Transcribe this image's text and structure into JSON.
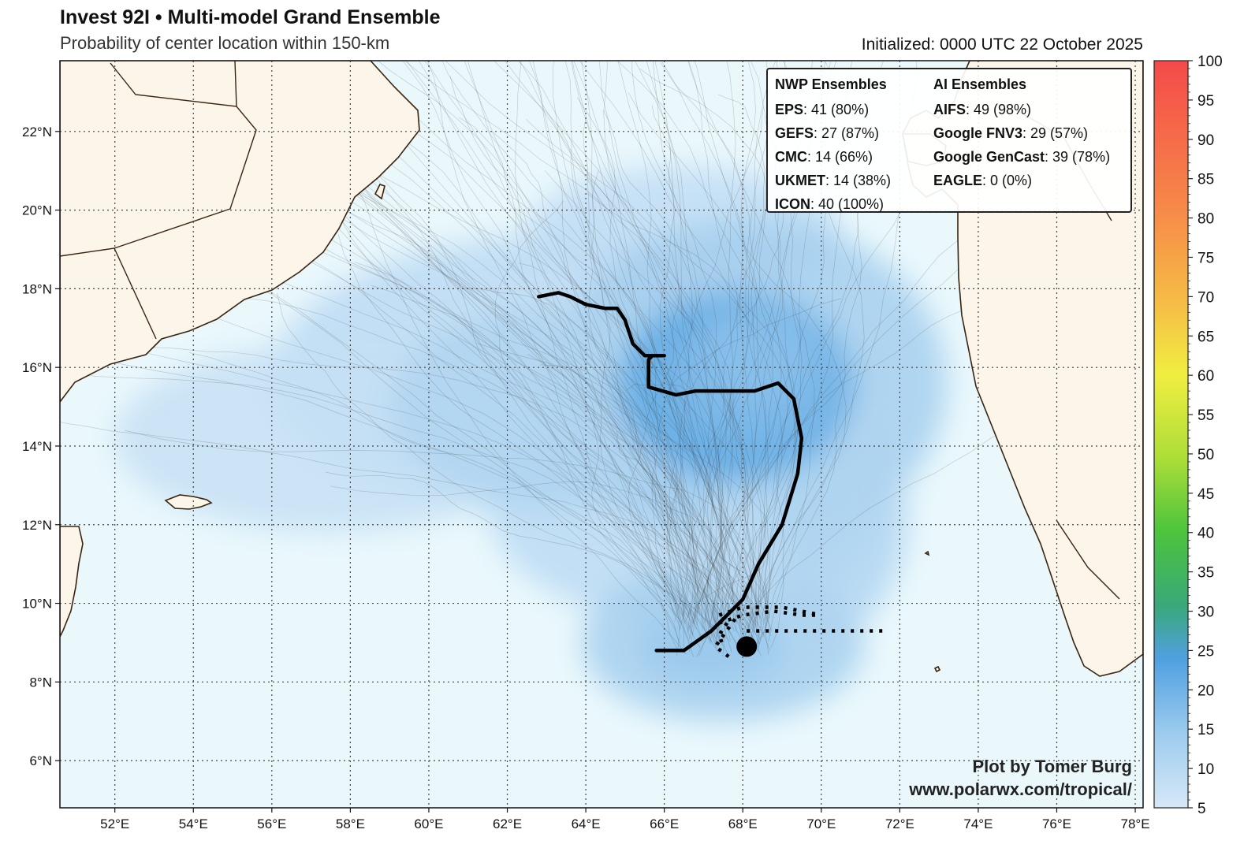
{
  "header": {
    "title": "Invest 92I • Multi-model Grand Ensemble",
    "subtitle": "Probability of center location within 150-km",
    "initialized": "Initialized: 0000 UTC 22 October 2025"
  },
  "legend": {
    "nwp_header": "NWP Ensembles",
    "ai_header": "AI Ensembles",
    "nwp": [
      {
        "name": "EPS",
        "value": ": 41 (80%)"
      },
      {
        "name": "GEFS",
        "value": ": 27 (87%)"
      },
      {
        "name": "CMC",
        "value": ": 14 (66%)"
      },
      {
        "name": "UKMET",
        "value": ": 14 (38%)"
      },
      {
        "name": "ICON",
        "value": ": 40 (100%)"
      }
    ],
    "ai": [
      {
        "name": "AIFS",
        "value": ": 49 (98%)"
      },
      {
        "name": "Google FNV3",
        "value": ": 29 (57%)"
      },
      {
        "name": "Google GenCast",
        "value": ": 39 (78%)"
      },
      {
        "name": "EAGLE",
        "value": ": 0 (0%)"
      }
    ]
  },
  "credit": {
    "line1": "Plot by Tomer Burg",
    "line2": "www.polarwx.com/tropical/"
  },
  "colors": {
    "ocean": "#eaf8fc",
    "land": "#fbf5ea",
    "coast": "#3a2410",
    "track": "#000000"
  },
  "chart_data": {
    "type": "heatmap",
    "quantity": "probability (%)",
    "lon_range": [
      50.6,
      78.2
    ],
    "lat_range": [
      4.8,
      23.8
    ],
    "lon_ticks": [
      "52°E",
      "54°E",
      "56°E",
      "58°E",
      "60°E",
      "62°E",
      "64°E",
      "66°E",
      "68°E",
      "70°E",
      "72°E",
      "74°E",
      "76°E",
      "78°E"
    ],
    "lat_ticks": [
      "6°N",
      "8°N",
      "10°N",
      "12°N",
      "14°N",
      "16°N",
      "18°N",
      "20°N",
      "22°N"
    ],
    "colorbar": {
      "range": [
        5,
        100
      ],
      "ticks": [
        5,
        10,
        15,
        20,
        25,
        30,
        35,
        40,
        45,
        50,
        55,
        60,
        65,
        70,
        75,
        80,
        85,
        90,
        95,
        100
      ],
      "stops": [
        "#d6e8f7",
        "#9ccbee",
        "#4fa0e0",
        "#3aa87a",
        "#4cc43c",
        "#aede38",
        "#f0ee40",
        "#f6ba46",
        "#f78a48",
        "#f44a4a"
      ]
    },
    "probability_blobs": [
      {
        "lon": 63.5,
        "lat": 15.8,
        "rlon": 7.5,
        "rlat": 3.6,
        "p": 10
      },
      {
        "lon": 57.5,
        "lat": 14.2,
        "rlon": 5.5,
        "rlat": 2.4,
        "p": 8
      },
      {
        "lon": 66.5,
        "lat": 19.5,
        "rlon": 4.0,
        "rlat": 1.6,
        "p": 9
      },
      {
        "lon": 66.5,
        "lat": 12.5,
        "rlon": 5.0,
        "rlat": 3.0,
        "p": 10
      },
      {
        "lon": 67.5,
        "lat": 9.0,
        "rlon": 3.6,
        "rlat": 2.0,
        "p": 14
      },
      {
        "lon": 68.2,
        "lat": 15.6,
        "rlon": 5.0,
        "rlat": 4.2,
        "p": 14
      },
      {
        "lon": 70.0,
        "lat": 12.2,
        "rlon": 2.2,
        "rlat": 3.0,
        "p": 12
      },
      {
        "lon": 63.0,
        "lat": 15.0,
        "rlon": 4.0,
        "rlat": 2.5,
        "p": 12
      },
      {
        "lon": 67.8,
        "lat": 15.5,
        "rlon": 3.0,
        "rlat": 2.4,
        "p": 24
      },
      {
        "lon": 68.3,
        "lat": 15.8,
        "rlon": 2.2,
        "rlat": 1.8,
        "p": 20
      },
      {
        "lon": 68.3,
        "lat": 16.2,
        "rlon": 1.4,
        "rlat": 1.2,
        "p": 18
      },
      {
        "lon": 67.8,
        "lat": 11.3,
        "rlon": 1.2,
        "rlat": 1.4,
        "p": 10
      },
      {
        "lon": 67.2,
        "lat": 8.9,
        "rlon": 1.8,
        "rlat": 0.9,
        "p": 16
      }
    ],
    "mean_track": {
      "lon": [
        65.8,
        66.5,
        67.2,
        68.0,
        68.4,
        69.0,
        69.4,
        69.5,
        69.3,
        68.9,
        68.3,
        67.5,
        66.8,
        66.3,
        65.6,
        65.6,
        65.7,
        66.0,
        65.5,
        65.2,
        65.0,
        64.8,
        64.5,
        64.0,
        63.6,
        63.3,
        62.8
      ],
      "lat": [
        8.8,
        8.8,
        9.3,
        10.1,
        11.0,
        12.0,
        13.3,
        14.2,
        15.2,
        15.6,
        15.4,
        15.4,
        15.4,
        15.3,
        15.5,
        16.2,
        16.3,
        16.3,
        16.3,
        16.6,
        17.2,
        17.5,
        17.5,
        17.6,
        17.8,
        17.9,
        17.8
      ]
    },
    "current_position": {
      "lon": 68.1,
      "lat": 8.9
    },
    "dotted_tracks": [
      {
        "lon": [
          68.1,
          68.6,
          69.2,
          70.0,
          71.0,
          71.6
        ],
        "lat": [
          9.3,
          9.3,
          9.3,
          9.3,
          9.3,
          9.3
        ]
      },
      {
        "lon": [
          67.4,
          68.0,
          68.8,
          69.5,
          70.0
        ],
        "lat": [
          9.5,
          9.7,
          9.8,
          9.7,
          9.7
        ]
      },
      {
        "lon": [
          67.4,
          68.0,
          69.0,
          70.0
        ],
        "lat": [
          9.7,
          9.9,
          9.9,
          9.7
        ]
      },
      {
        "lon": [
          67.6,
          67.4,
          67.5
        ],
        "lat": [
          9.5,
          9.2,
          8.9
        ]
      },
      {
        "lon": [
          67.8,
          67.3,
          67.7
        ],
        "lat": [
          9.6,
          8.9,
          8.6
        ]
      }
    ]
  }
}
